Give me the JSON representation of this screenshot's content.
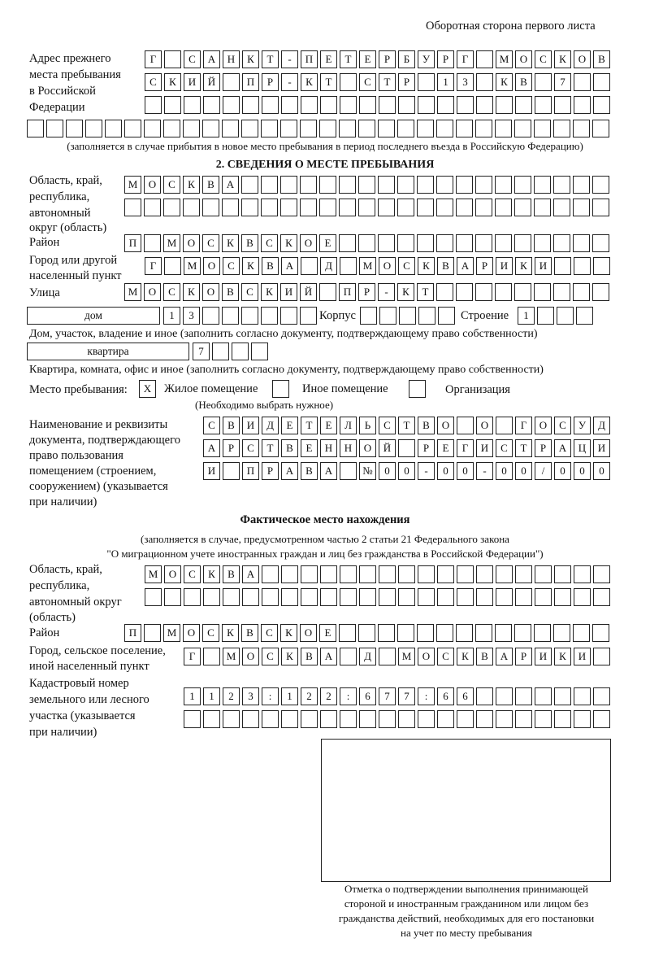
{
  "header": {
    "page_side": "Оборотная сторона первого листа"
  },
  "previous_address": {
    "label": [
      "Адрес прежнего",
      "места пребывания",
      "в Российской",
      "Федерации"
    ],
    "rows": [
      [
        "Г",
        "",
        "С",
        "А",
        "Н",
        "К",
        "Т",
        "-",
        "П",
        "Е",
        "Т",
        "Е",
        "Р",
        "Б",
        "У",
        "Р",
        "Г",
        "",
        "М",
        "О",
        "С",
        "К",
        "О",
        "В"
      ],
      [
        "С",
        "К",
        "И",
        "Й",
        "",
        "П",
        "Р",
        "-",
        "К",
        "Т",
        "",
        "С",
        "Т",
        "Р",
        "",
        "1",
        "3",
        "",
        "К",
        "В",
        "",
        "7",
        "",
        ""
      ],
      [
        "",
        "",
        "",
        "",
        "",
        "",
        "",
        "",
        "",
        "",
        "",
        "",
        "",
        "",
        "",
        "",
        "",
        "",
        "",
        "",
        "",
        "",
        "",
        ""
      ],
      [
        "",
        "",
        "",
        "",
        "",
        "",
        "",
        "",
        "",
        "",
        "",
        "",
        "",
        "",
        "",
        "",
        "",
        "",
        "",
        "",
        "",
        "",
        "",
        "",
        "",
        "",
        "",
        "",
        "",
        ""
      ]
    ],
    "note": "(заполняется в случае прибытия в новое место пребывания в период последнего въезда в Российскую Федерацию)"
  },
  "section2": {
    "title": "2. СВЕДЕНИЯ О МЕСТЕ ПРЕБЫВАНИЯ",
    "region_label": [
      "Область, край,",
      "республика,",
      "автономный",
      "округ (область)"
    ],
    "region_rows": [
      [
        "М",
        "О",
        "С",
        "К",
        "В",
        "А",
        "",
        "",
        "",
        "",
        "",
        "",
        "",
        "",
        "",
        "",
        "",
        "",
        "",
        "",
        "",
        "",
        "",
        "",
        ""
      ],
      [
        "",
        "",
        "",
        "",
        "",
        "",
        "",
        "",
        "",
        "",
        "",
        "",
        "",
        "",
        "",
        "",
        "",
        "",
        "",
        "",
        "",
        "",
        "",
        "",
        ""
      ]
    ],
    "district_label": "Район",
    "district_row": [
      "П",
      "",
      "М",
      "О",
      "С",
      "К",
      "В",
      "С",
      "К",
      "О",
      "Е",
      "",
      "",
      "",
      "",
      "",
      "",
      "",
      "",
      "",
      "",
      "",
      "",
      "",
      ""
    ],
    "city_label": [
      "Город или другой",
      "населенный пункт"
    ],
    "city_row": [
      "Г",
      "",
      "М",
      "О",
      "С",
      "К",
      "В",
      "А",
      "",
      "Д",
      "",
      "М",
      "О",
      "С",
      "К",
      "В",
      "А",
      "Р",
      "И",
      "К",
      "И",
      "",
      "",
      ""
    ],
    "street_label": "Улица",
    "street_row": [
      "М",
      "О",
      "С",
      "К",
      "О",
      "В",
      "С",
      "К",
      "И",
      "Й",
      "",
      "П",
      "Р",
      "-",
      "К",
      "Т",
      "",
      "",
      "",
      "",
      "",
      "",
      "",
      "",
      ""
    ],
    "house": {
      "type": "дом",
      "number": [
        "1",
        "3",
        "",
        "",
        "",
        "",
        "",
        ""
      ],
      "korpus_label": "Корпус",
      "korpus": [
        "",
        "",
        "",
        "",
        ""
      ],
      "building_label": "Строение",
      "building": [
        "1",
        "",
        "",
        ""
      ],
      "note": "Дом, участок, владение и иное (заполнить согласно документу, подтверждающему право собственности)"
    },
    "apartment": {
      "type": "квартира",
      "number": [
        "7",
        "",
        "",
        ""
      ],
      "note": "Квартира, комната, офис и иное (заполнить согласно документу, подтверждающему право собственности)"
    },
    "place_type": {
      "label": "Место пребывания:",
      "options": [
        {
          "mark": "X",
          "label": "Жилое помещение"
        },
        {
          "mark": "",
          "label": "Иное помещение"
        },
        {
          "mark": "",
          "label": "Организация"
        }
      ],
      "note": "(Необходимо выбрать нужное)"
    },
    "document_label": [
      "Наименование и реквизиты",
      "документа, подтверждающего",
      "право пользования",
      "помещением (строением,",
      "сооружением) (указывается",
      "при наличии)"
    ],
    "document_rows": [
      [
        "С",
        "В",
        "И",
        "Д",
        "Е",
        "Т",
        "Е",
        "Л",
        "Ь",
        "С",
        "Т",
        "В",
        "О",
        "",
        "О",
        "",
        "Г",
        "О",
        "С",
        "У",
        "Д"
      ],
      [
        "А",
        "Р",
        "С",
        "Т",
        "В",
        "Е",
        "Н",
        "Н",
        "О",
        "Й",
        "",
        "Р",
        "Е",
        "Г",
        "И",
        "С",
        "Т",
        "Р",
        "А",
        "Ц",
        "И"
      ],
      [
        "И",
        "",
        "П",
        "Р",
        "А",
        "В",
        "А",
        "",
        "№",
        "0",
        "0",
        "-",
        "0",
        "0",
        "-",
        "0",
        "0",
        "/",
        "0",
        "0",
        "0"
      ]
    ]
  },
  "actual_location": {
    "title": "Фактическое место нахождения",
    "note": [
      "(заполняется в случае, предусмотренном частью 2 статьи 21 Федерального закона",
      "\"О миграционном учете иностранных граждан и лиц без гражданства в Российской Федерации\")"
    ],
    "region_label": [
      "Область, край,",
      "республика,",
      "автономный округ",
      "(область)"
    ],
    "region_rows": [
      [
        "М",
        "О",
        "С",
        "К",
        "В",
        "А",
        "",
        "",
        "",
        "",
        "",
        "",
        "",
        "",
        "",
        "",
        "",
        "",
        "",
        "",
        "",
        "",
        "",
        ""
      ],
      [
        "",
        "",
        "",
        "",
        "",
        "",
        "",
        "",
        "",
        "",
        "",
        "",
        "",
        "",
        "",
        "",
        "",
        "",
        "",
        "",
        "",
        "",
        "",
        ""
      ]
    ],
    "district_label": "Район",
    "district_row": [
      "П",
      "",
      "М",
      "О",
      "С",
      "К",
      "В",
      "С",
      "К",
      "О",
      "Е",
      "",
      "",
      "",
      "",
      "",
      "",
      "",
      "",
      "",
      "",
      "",
      "",
      "",
      ""
    ],
    "city_label": [
      "Город, сельское поселение,",
      "иной населенный пункт"
    ],
    "city_row": [
      "Г",
      "",
      "М",
      "О",
      "С",
      "К",
      "В",
      "А",
      "",
      "Д",
      "",
      "М",
      "О",
      "С",
      "К",
      "В",
      "А",
      "Р",
      "И",
      "К",
      "И",
      ""
    ],
    "cadastral_label": [
      "Кадастровый номер",
      "земельного или лесного",
      "участка (указывается",
      "при наличии)"
    ],
    "cadastral_rows": [
      [
        "1",
        "1",
        "2",
        "3",
        ":",
        "1",
        "2",
        "2",
        ":",
        "6",
        "7",
        "7",
        ":",
        "6",
        "6",
        "",
        "",
        "",
        "",
        "",
        "",
        ""
      ],
      [
        "",
        "",
        "",
        "",
        "",
        "",
        "",
        "",
        "",
        "",
        "",
        "",
        "",
        "",
        "",
        "",
        "",
        "",
        "",
        "",
        "",
        ""
      ]
    ]
  },
  "confirmation": {
    "caption": [
      "Отметка о подтверждении выполнения принимающей",
      "стороной и иностранным гражданином или лицом без",
      "гражданства действий, необходимых для его постановки",
      "на учет по месту пребывания"
    ]
  }
}
